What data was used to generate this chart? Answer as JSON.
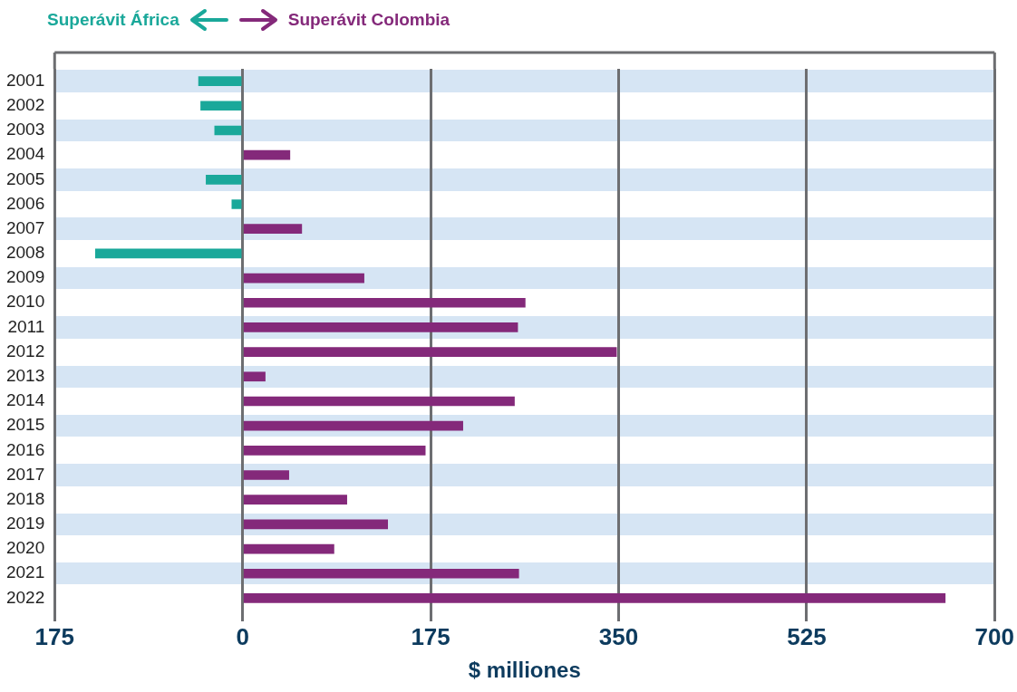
{
  "chart_data": {
    "type": "bar",
    "orientation": "horizontal",
    "stacked": true,
    "xlabel": "$ milliones",
    "categories": [
      "2001",
      "2002",
      "2003",
      "2004",
      "2005",
      "2006",
      "2007",
      "2008",
      "2009",
      "2010",
      "2011",
      "2012",
      "2013",
      "2014",
      "2015",
      "2016",
      "2017",
      "2018",
      "2019",
      "2020",
      "2021",
      "2022"
    ],
    "series": [
      {
        "name": "Superávit África",
        "color": "#1aa89a",
        "values": [
          -41,
          -39,
          -26,
          null,
          -34,
          -10,
          null,
          -137,
          null,
          null,
          null,
          null,
          null,
          null,
          null,
          null,
          null,
          null,
          null,
          null,
          null,
          null
        ]
      },
      {
        "name": "Superávit Colombia",
        "color": "#84297a",
        "values": [
          null,
          null,
          null,
          44,
          null,
          null,
          55,
          null,
          113,
          263,
          256,
          348,
          21,
          253,
          205,
          170,
          43,
          97,
          135,
          85,
          257,
          654
        ]
      }
    ],
    "xlim": [
      -175,
      700
    ],
    "xticks": [
      {
        "value": -175,
        "label": "175"
      },
      0,
      175,
      350,
      525,
      700
    ],
    "grid": "x",
    "legend": "top left"
  }
}
